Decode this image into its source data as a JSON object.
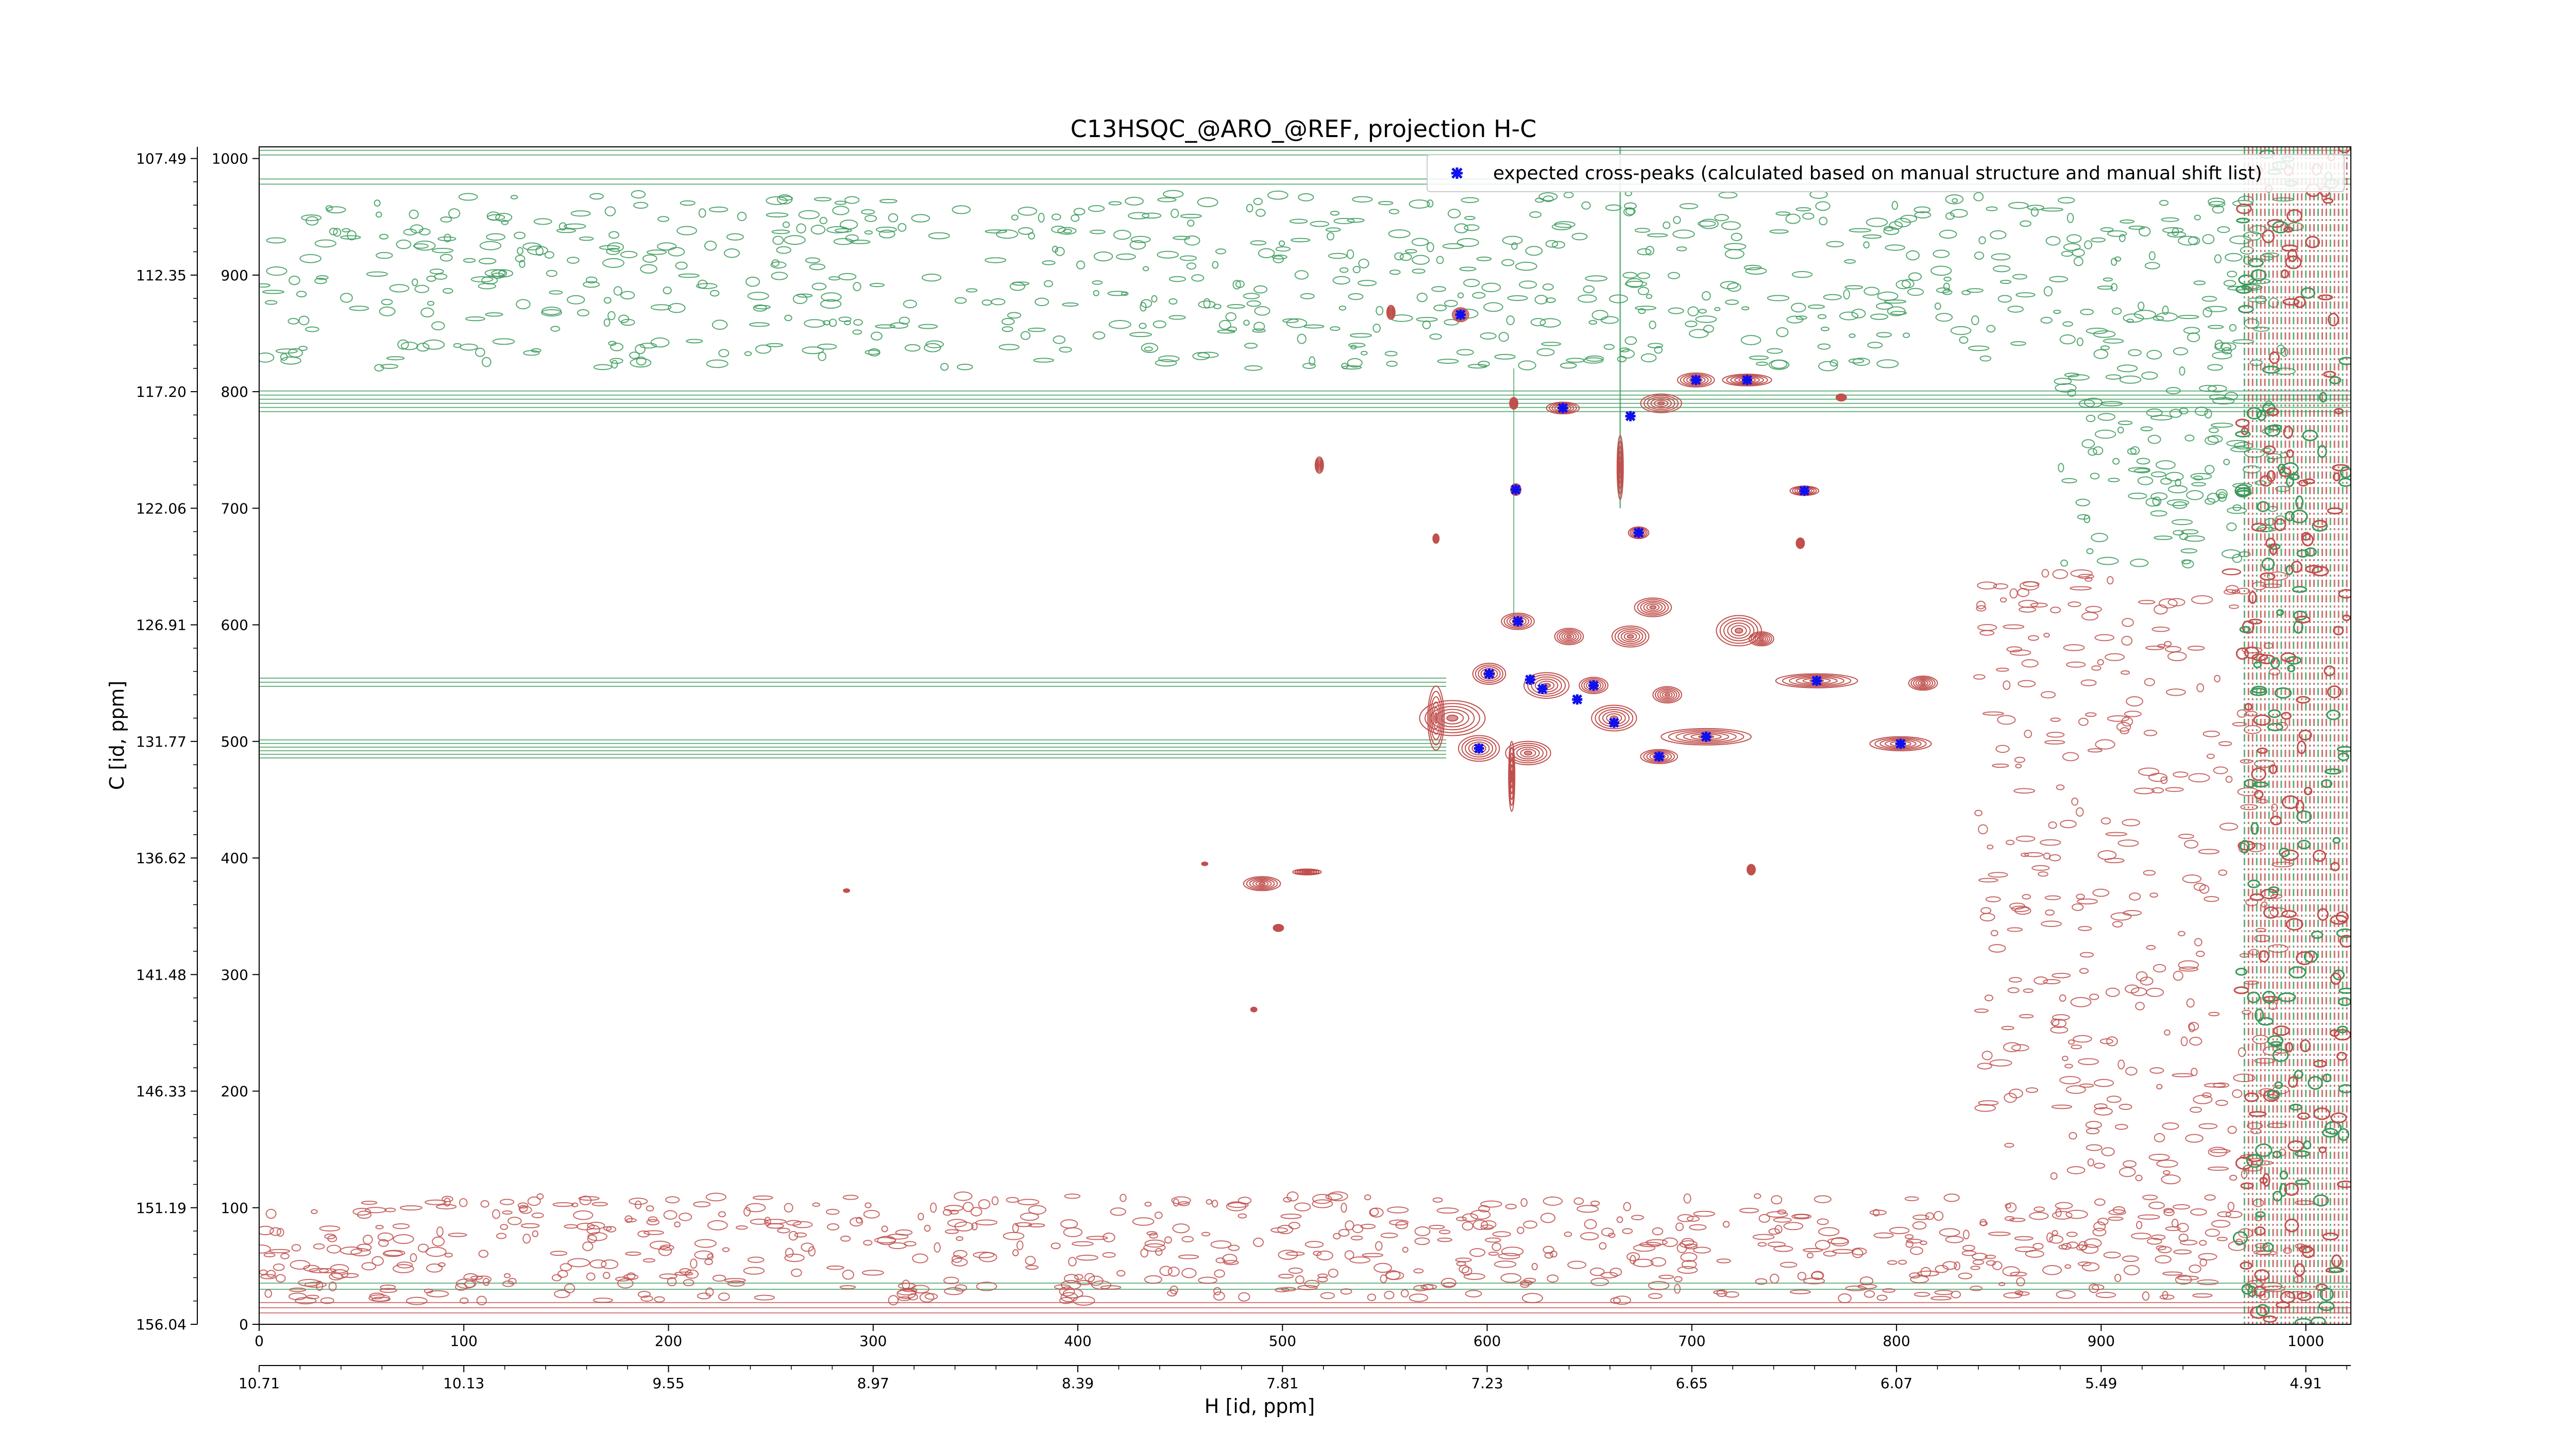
{
  "chart_data": {
    "type": "scatter",
    "title": "C13HSQC_@ARO_@REF, projection H-C",
    "xlabel": "H [id, ppm]",
    "ylabel": "C [id, ppm]",
    "x_index_range": [
      0,
      1022
    ],
    "y_index_range": [
      0,
      1010
    ],
    "x_index_ticks": [
      "0",
      "100",
      "200",
      "300",
      "400",
      "500",
      "600",
      "700",
      "800",
      "900",
      "1000"
    ],
    "x_ppm_ticks": [
      "10.71",
      "10.13",
      "9.55",
      "8.97",
      "8.39",
      "7.81",
      "7.23",
      "6.65",
      "6.07",
      "5.49",
      "4.91"
    ],
    "y_index_ticks": [
      "0",
      "100",
      "200",
      "300",
      "400",
      "500",
      "600",
      "700",
      "800",
      "900",
      "1000"
    ],
    "y_ppm_ticks": [
      "156.04",
      "151.19",
      "146.33",
      "141.48",
      "136.62",
      "131.77",
      "126.91",
      "122.06",
      "117.20",
      "112.35",
      "107.49"
    ],
    "legend": {
      "position": "top-right",
      "entries": [
        "expected cross-peaks (calculated based on manual structure and manual shift list)"
      ]
    },
    "colors": {
      "positive_contours": "#c0504d",
      "negative_contours": "#3a9a5a",
      "expected_peak": "#1010ee"
    },
    "series": [
      {
        "name": "expected cross-peaks (calculated based on manual structure and manual shift list)",
        "points": [
          {
            "x": 587,
            "y": 866
          },
          {
            "x": 702,
            "y": 810
          },
          {
            "x": 727,
            "y": 810
          },
          {
            "x": 637,
            "y": 786
          },
          {
            "x": 670,
            "y": 779
          },
          {
            "x": 614,
            "y": 716
          },
          {
            "x": 755,
            "y": 715
          },
          {
            "x": 674,
            "y": 679
          },
          {
            "x": 615,
            "y": 603
          },
          {
            "x": 601,
            "y": 558
          },
          {
            "x": 621,
            "y": 553
          },
          {
            "x": 627,
            "y": 545
          },
          {
            "x": 652,
            "y": 548
          },
          {
            "x": 644,
            "y": 536
          },
          {
            "x": 662,
            "y": 516
          },
          {
            "x": 761,
            "y": 552
          },
          {
            "x": 596,
            "y": 494
          },
          {
            "x": 707,
            "y": 504
          },
          {
            "x": 684,
            "y": 487
          },
          {
            "x": 802,
            "y": 498
          }
        ]
      }
    ],
    "contour_blobs": [
      {
        "x": 587,
        "y": 866,
        "w": 8,
        "h": 12,
        "c": "pos"
      },
      {
        "x": 553,
        "y": 868,
        "w": 4,
        "h": 12,
        "c": "pos"
      },
      {
        "x": 702,
        "y": 810,
        "w": 18,
        "h": 12,
        "c": "pos"
      },
      {
        "x": 727,
        "y": 810,
        "w": 24,
        "h": 10,
        "c": "pos"
      },
      {
        "x": 685,
        "y": 790,
        "w": 20,
        "h": 16,
        "c": "pos"
      },
      {
        "x": 637,
        "y": 786,
        "w": 16,
        "h": 10,
        "c": "pos"
      },
      {
        "x": 613,
        "y": 790,
        "w": 4,
        "h": 10,
        "c": "pos"
      },
      {
        "x": 773,
        "y": 795,
        "w": 5,
        "h": 6,
        "c": "pos"
      },
      {
        "x": 518,
        "y": 737,
        "w": 4,
        "h": 14,
        "c": "pos"
      },
      {
        "x": 614,
        "y": 716,
        "w": 5,
        "h": 10,
        "c": "pos"
      },
      {
        "x": 755,
        "y": 715,
        "w": 14,
        "h": 8,
        "c": "pos"
      },
      {
        "x": 674,
        "y": 679,
        "w": 10,
        "h": 10,
        "c": "pos"
      },
      {
        "x": 753,
        "y": 670,
        "w": 4,
        "h": 9,
        "c": "pos"
      },
      {
        "x": 575,
        "y": 674,
        "w": 3,
        "h": 8,
        "c": "pos"
      },
      {
        "x": 615,
        "y": 603,
        "w": 16,
        "h": 14,
        "c": "pos"
      },
      {
        "x": 681,
        "y": 615,
        "w": 18,
        "h": 16,
        "c": "pos"
      },
      {
        "x": 723,
        "y": 595,
        "w": 22,
        "h": 26,
        "c": "pos"
      },
      {
        "x": 734,
        "y": 588,
        "w": 12,
        "h": 12,
        "c": "pos"
      },
      {
        "x": 670,
        "y": 590,
        "w": 18,
        "h": 18,
        "c": "pos"
      },
      {
        "x": 640,
        "y": 590,
        "w": 14,
        "h": 14,
        "c": "pos"
      },
      {
        "x": 601,
        "y": 558,
        "w": 16,
        "h": 18,
        "c": "pos"
      },
      {
        "x": 629,
        "y": 548,
        "w": 22,
        "h": 22,
        "c": "pos"
      },
      {
        "x": 652,
        "y": 548,
        "w": 14,
        "h": 14,
        "c": "pos"
      },
      {
        "x": 688,
        "y": 540,
        "w": 14,
        "h": 14,
        "c": "pos"
      },
      {
        "x": 662,
        "y": 520,
        "w": 22,
        "h": 22,
        "c": "pos"
      },
      {
        "x": 761,
        "y": 552,
        "w": 40,
        "h": 12,
        "c": "pos"
      },
      {
        "x": 813,
        "y": 550,
        "w": 14,
        "h": 12,
        "c": "pos"
      },
      {
        "x": 583,
        "y": 520,
        "w": 32,
        "h": 30,
        "c": "pos"
      },
      {
        "x": 596,
        "y": 494,
        "w": 20,
        "h": 22,
        "c": "pos"
      },
      {
        "x": 620,
        "y": 490,
        "w": 22,
        "h": 20,
        "c": "pos"
      },
      {
        "x": 707,
        "y": 504,
        "w": 44,
        "h": 14,
        "c": "pos"
      },
      {
        "x": 684,
        "y": 487,
        "w": 18,
        "h": 12,
        "c": "pos"
      },
      {
        "x": 802,
        "y": 498,
        "w": 30,
        "h": 12,
        "c": "pos"
      },
      {
        "x": 575,
        "y": 520,
        "w": 8,
        "h": 55,
        "c": "pos"
      },
      {
        "x": 612,
        "y": 470,
        "w": 3,
        "h": 60,
        "c": "pos"
      },
      {
        "x": 665,
        "y": 735,
        "w": 3,
        "h": 55,
        "c": "pos"
      },
      {
        "x": 490,
        "y": 378,
        "w": 18,
        "h": 12,
        "c": "pos"
      },
      {
        "x": 512,
        "y": 388,
        "w": 14,
        "h": 5,
        "c": "pos"
      },
      {
        "x": 498,
        "y": 340,
        "w": 5,
        "h": 6,
        "c": "pos"
      },
      {
        "x": 729,
        "y": 390,
        "w": 4,
        "h": 9,
        "c": "pos"
      },
      {
        "x": 287,
        "y": 372,
        "w": 3,
        "h": 3,
        "c": "pos"
      },
      {
        "x": 486,
        "y": 270,
        "w": 3,
        "h": 4,
        "c": "pos"
      },
      {
        "x": 462,
        "y": 395,
        "w": 3,
        "h": 3,
        "c": "pos"
      }
    ]
  }
}
